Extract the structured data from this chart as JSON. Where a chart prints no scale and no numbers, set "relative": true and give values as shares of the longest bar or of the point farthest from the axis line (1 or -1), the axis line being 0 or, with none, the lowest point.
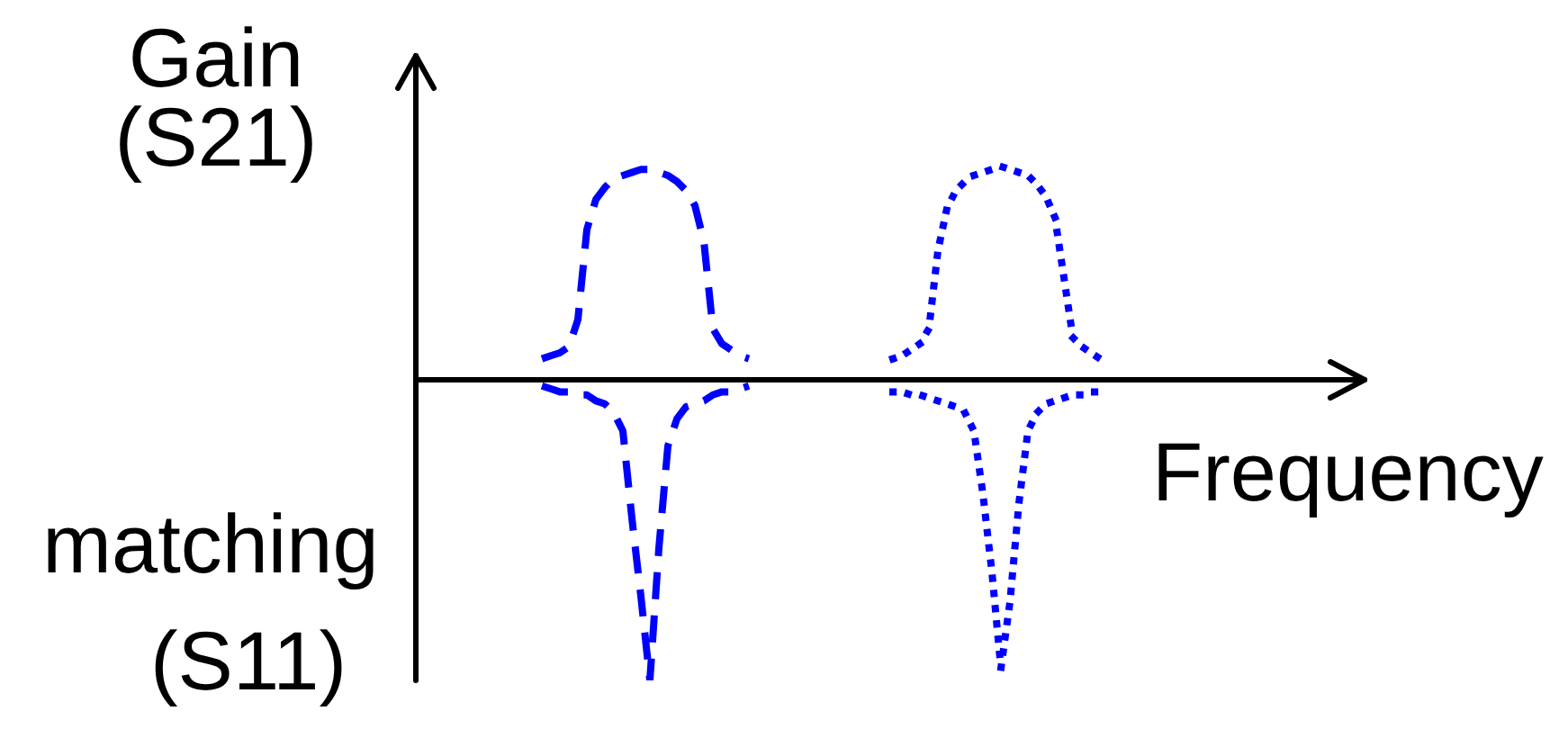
{
  "chart_data": {
    "type": "line",
    "xlabel": "Frequency",
    "ylabel": "Gain (S21)",
    "annotations": [
      "matching (S11)"
    ],
    "relative": true,
    "categories": [
      null,
      null,
      null,
      null,
      null,
      null,
      null,
      null,
      null,
      null,
      null,
      null,
      null,
      null,
      null,
      null,
      null,
      null,
      null,
      null,
      null,
      null,
      null,
      null,
      null,
      null,
      null,
      null,
      null,
      null,
      null,
      null,
      null,
      null,
      null,
      null,
      null,
      null,
      null,
      null,
      null,
      null,
      null,
      null,
      null,
      null,
      null,
      null,
      null,
      null,
      null,
      null,
      null,
      null,
      null,
      null,
      null,
      null,
      null,
      null,
      null,
      null,
      null,
      null,
      null,
      null,
      null,
      null,
      null,
      null,
      null,
      null,
      null,
      null,
      null,
      null,
      null,
      null,
      null,
      null,
      null,
      null,
      null,
      null,
      null,
      null,
      null,
      null,
      null,
      null,
      null,
      null,
      null,
      null,
      null,
      null,
      null,
      null,
      null,
      null,
      null,
      null,
      null,
      null,
      null,
      null
    ],
    "series": [
      {
        "color": "#0000ff",
        "line_style": "dashed",
        "values": [
          null,
          null,
          null,
          null,
          null,
          null,
          null,
          null,
          null,
          null,
          null,
          null,
          null,
          null,
          0.07,
          0.08,
          0.09,
          0.11,
          0.2,
          0.5,
          0.6,
          0.64,
          0.67,
          0.68,
          0.69,
          0.7,
          0.7,
          0.69,
          0.68,
          0.66,
          0.63,
          0.58,
          0.46,
          0.17,
          0.12,
          0.1,
          0.08,
          0.07,
          null,
          null,
          null,
          null,
          null,
          null,
          null,
          null,
          null,
          null,
          null,
          null,
          null,
          null,
          null,
          null,
          null,
          null,
          null,
          null,
          null,
          null,
          null,
          null,
          null,
          null,
          null,
          null,
          null,
          null,
          null,
          null,
          null,
          null,
          null,
          null,
          null,
          null,
          null,
          null,
          null,
          null,
          null,
          null,
          null,
          null,
          null,
          null,
          null,
          null,
          null,
          null,
          null,
          null,
          null,
          null,
          null,
          null,
          null,
          null,
          null,
          null,
          null,
          null,
          null,
          null,
          null,
          null
        ]
      },
      {
        "color": "#0000ff",
        "line_style": "dashed",
        "values": [
          null,
          null,
          null,
          null,
          null,
          null,
          null,
          null,
          null,
          null,
          null,
          null,
          null,
          null,
          -0.02,
          -0.03,
          -0.04,
          -0.04,
          -0.05,
          -0.05,
          -0.07,
          -0.08,
          -0.11,
          -0.17,
          -0.46,
          -0.72,
          -1,
          -0.56,
          -0.22,
          -0.13,
          -0.09,
          -0.08,
          -0.07,
          -0.05,
          -0.04,
          -0.04,
          -0.03,
          -0.02,
          null,
          null,
          null,
          null,
          null,
          null,
          null,
          null,
          null,
          null,
          null,
          null,
          null,
          null,
          null,
          null,
          null,
          null,
          null,
          null,
          null,
          null,
          null,
          null,
          null,
          null,
          null,
          null,
          null,
          null,
          null,
          null,
          null,
          null,
          null,
          null,
          null,
          null,
          null,
          null,
          null,
          null,
          null,
          null,
          null,
          null,
          null,
          null,
          null,
          null,
          null,
          null,
          null,
          null,
          null,
          null,
          null,
          null,
          null,
          null,
          null,
          null,
          null,
          null,
          null,
          null,
          null,
          null
        ]
      },
      {
        "color": "#0000ff",
        "line_style": "dotted",
        "values": [
          null,
          null,
          null,
          null,
          null,
          null,
          null,
          null,
          null,
          null,
          null,
          null,
          null,
          null,
          null,
          null,
          null,
          null,
          null,
          null,
          null,
          null,
          null,
          null,
          null,
          null,
          null,
          null,
          null,
          null,
          null,
          null,
          null,
          null,
          null,
          null,
          null,
          null,
          null,
          null,
          null,
          null,
          null,
          null,
          null,
          null,
          null,
          null,
          null,
          null,
          null,
          null,
          null,
          0.07,
          0.08,
          0.1,
          0.12,
          0.17,
          0.43,
          0.57,
          0.63,
          0.66,
          0.68,
          0.69,
          0.7,
          0.71,
          0.7,
          0.69,
          0.68,
          0.65,
          0.61,
          0.54,
          0.34,
          0.14,
          0.11,
          0.09,
          0.07,
          null,
          null,
          null,
          null,
          null,
          null,
          null,
          null,
          null,
          null,
          null,
          null,
          null,
          null,
          null,
          null,
          null,
          null,
          null,
          null,
          null,
          null,
          null,
          null,
          null,
          null,
          null,
          null,
          null
        ]
      },
      {
        "color": "#0000ff",
        "line_style": "dotted",
        "values": [
          null,
          null,
          null,
          null,
          null,
          null,
          null,
          null,
          null,
          null,
          null,
          null,
          null,
          null,
          null,
          null,
          null,
          null,
          null,
          null,
          null,
          null,
          null,
          null,
          null,
          null,
          null,
          null,
          null,
          null,
          null,
          null,
          null,
          null,
          null,
          null,
          null,
          null,
          null,
          null,
          null,
          null,
          null,
          null,
          null,
          null,
          null,
          null,
          null,
          null,
          null,
          null,
          null,
          -0.04,
          -0.04,
          -0.05,
          -0.05,
          -0.06,
          -0.07,
          -0.08,
          -0.09,
          -0.11,
          -0.17,
          -0.38,
          -0.64,
          -0.96,
          -0.74,
          -0.41,
          -0.17,
          -0.11,
          -0.08,
          -0.07,
          -0.06,
          -0.05,
          -0.05,
          -0.04,
          -0.04,
          null,
          null,
          null,
          null,
          null,
          null,
          null,
          null,
          null,
          null,
          null,
          null,
          null,
          null,
          null,
          null,
          null,
          null,
          null,
          null,
          null,
          null,
          null,
          null,
          null,
          null,
          null,
          null,
          null
        ]
      }
    ]
  }
}
